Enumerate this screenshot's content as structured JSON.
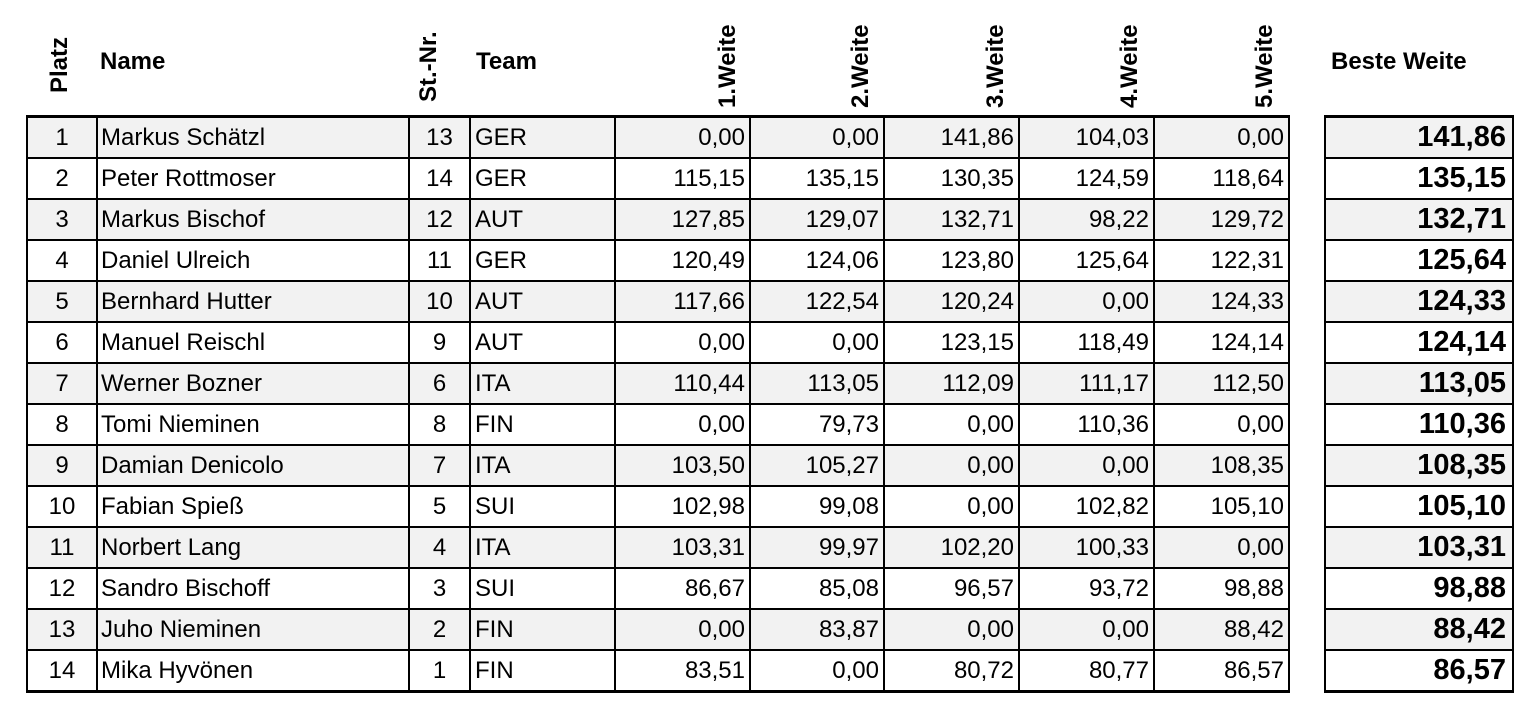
{
  "headers": {
    "platz": "Platz",
    "name": "Name",
    "stnr": "St.-Nr.",
    "team": "Team",
    "w1": "1.Weite",
    "w2": "2.Weite",
    "w3": "3.Weite",
    "w4": "4.Weite",
    "w5": "5.Weite",
    "best": "Beste Weite"
  },
  "rows": [
    {
      "platz": "1",
      "name": "Markus Schätzl",
      "stnr": "13",
      "team": "GER",
      "w1": "0,00",
      "w2": "0,00",
      "w3": "141,86",
      "w4": "104,03",
      "w5": "0,00",
      "best": "141,86"
    },
    {
      "platz": "2",
      "name": "Peter Rottmoser",
      "stnr": "14",
      "team": "GER",
      "w1": "115,15",
      "w2": "135,15",
      "w3": "130,35",
      "w4": "124,59",
      "w5": "118,64",
      "best": "135,15"
    },
    {
      "platz": "3",
      "name": "Markus Bischof",
      "stnr": "12",
      "team": "AUT",
      "w1": "127,85",
      "w2": "129,07",
      "w3": "132,71",
      "w4": "98,22",
      "w5": "129,72",
      "best": "132,71"
    },
    {
      "platz": "4",
      "name": "Daniel Ulreich",
      "stnr": "11",
      "team": "GER",
      "w1": "120,49",
      "w2": "124,06",
      "w3": "123,80",
      "w4": "125,64",
      "w5": "122,31",
      "best": "125,64"
    },
    {
      "platz": "5",
      "name": "Bernhard Hutter",
      "stnr": "10",
      "team": "AUT",
      "w1": "117,66",
      "w2": "122,54",
      "w3": "120,24",
      "w4": "0,00",
      "w5": "124,33",
      "best": "124,33"
    },
    {
      "platz": "6",
      "name": "Manuel Reischl",
      "stnr": "9",
      "team": "AUT",
      "w1": "0,00",
      "w2": "0,00",
      "w3": "123,15",
      "w4": "118,49",
      "w5": "124,14",
      "best": "124,14"
    },
    {
      "platz": "7",
      "name": "Werner Bozner",
      "stnr": "6",
      "team": "ITA",
      "w1": "110,44",
      "w2": "113,05",
      "w3": "112,09",
      "w4": "111,17",
      "w5": "112,50",
      "best": "113,05"
    },
    {
      "platz": "8",
      "name": "Tomi Nieminen",
      "stnr": "8",
      "team": "FIN",
      "w1": "0,00",
      "w2": "79,73",
      "w3": "0,00",
      "w4": "110,36",
      "w5": "0,00",
      "best": "110,36"
    },
    {
      "platz": "9",
      "name": "Damian Denicolo",
      "stnr": "7",
      "team": "ITA",
      "w1": "103,50",
      "w2": "105,27",
      "w3": "0,00",
      "w4": "0,00",
      "w5": "108,35",
      "best": "108,35"
    },
    {
      "platz": "10",
      "name": "Fabian Spieß",
      "stnr": "5",
      "team": "SUI",
      "w1": "102,98",
      "w2": "99,08",
      "w3": "0,00",
      "w4": "102,82",
      "w5": "105,10",
      "best": "105,10"
    },
    {
      "platz": "11",
      "name": "Norbert Lang",
      "stnr": "4",
      "team": "ITA",
      "w1": "103,31",
      "w2": "99,97",
      "w3": "102,20",
      "w4": "100,33",
      "w5": "0,00",
      "best": "103,31"
    },
    {
      "platz": "12",
      "name": "Sandro Bischoff",
      "stnr": "3",
      "team": "SUI",
      "w1": "86,67",
      "w2": "85,08",
      "w3": "96,57",
      "w4": "93,72",
      "w5": "98,88",
      "best": "98,88"
    },
    {
      "platz": "13",
      "name": "Juho Nieminen",
      "stnr": "2",
      "team": "FIN",
      "w1": "0,00",
      "w2": "83,87",
      "w3": "0,00",
      "w4": "0,00",
      "w5": "88,42",
      "best": "88,42"
    },
    {
      "platz": "14",
      "name": "Mika Hyvönen",
      "stnr": "1",
      "team": "FIN",
      "w1": "83,51",
      "w2": "0,00",
      "w3": "80,72",
      "w4": "80,77",
      "w5": "86,57",
      "best": "86,57"
    }
  ]
}
